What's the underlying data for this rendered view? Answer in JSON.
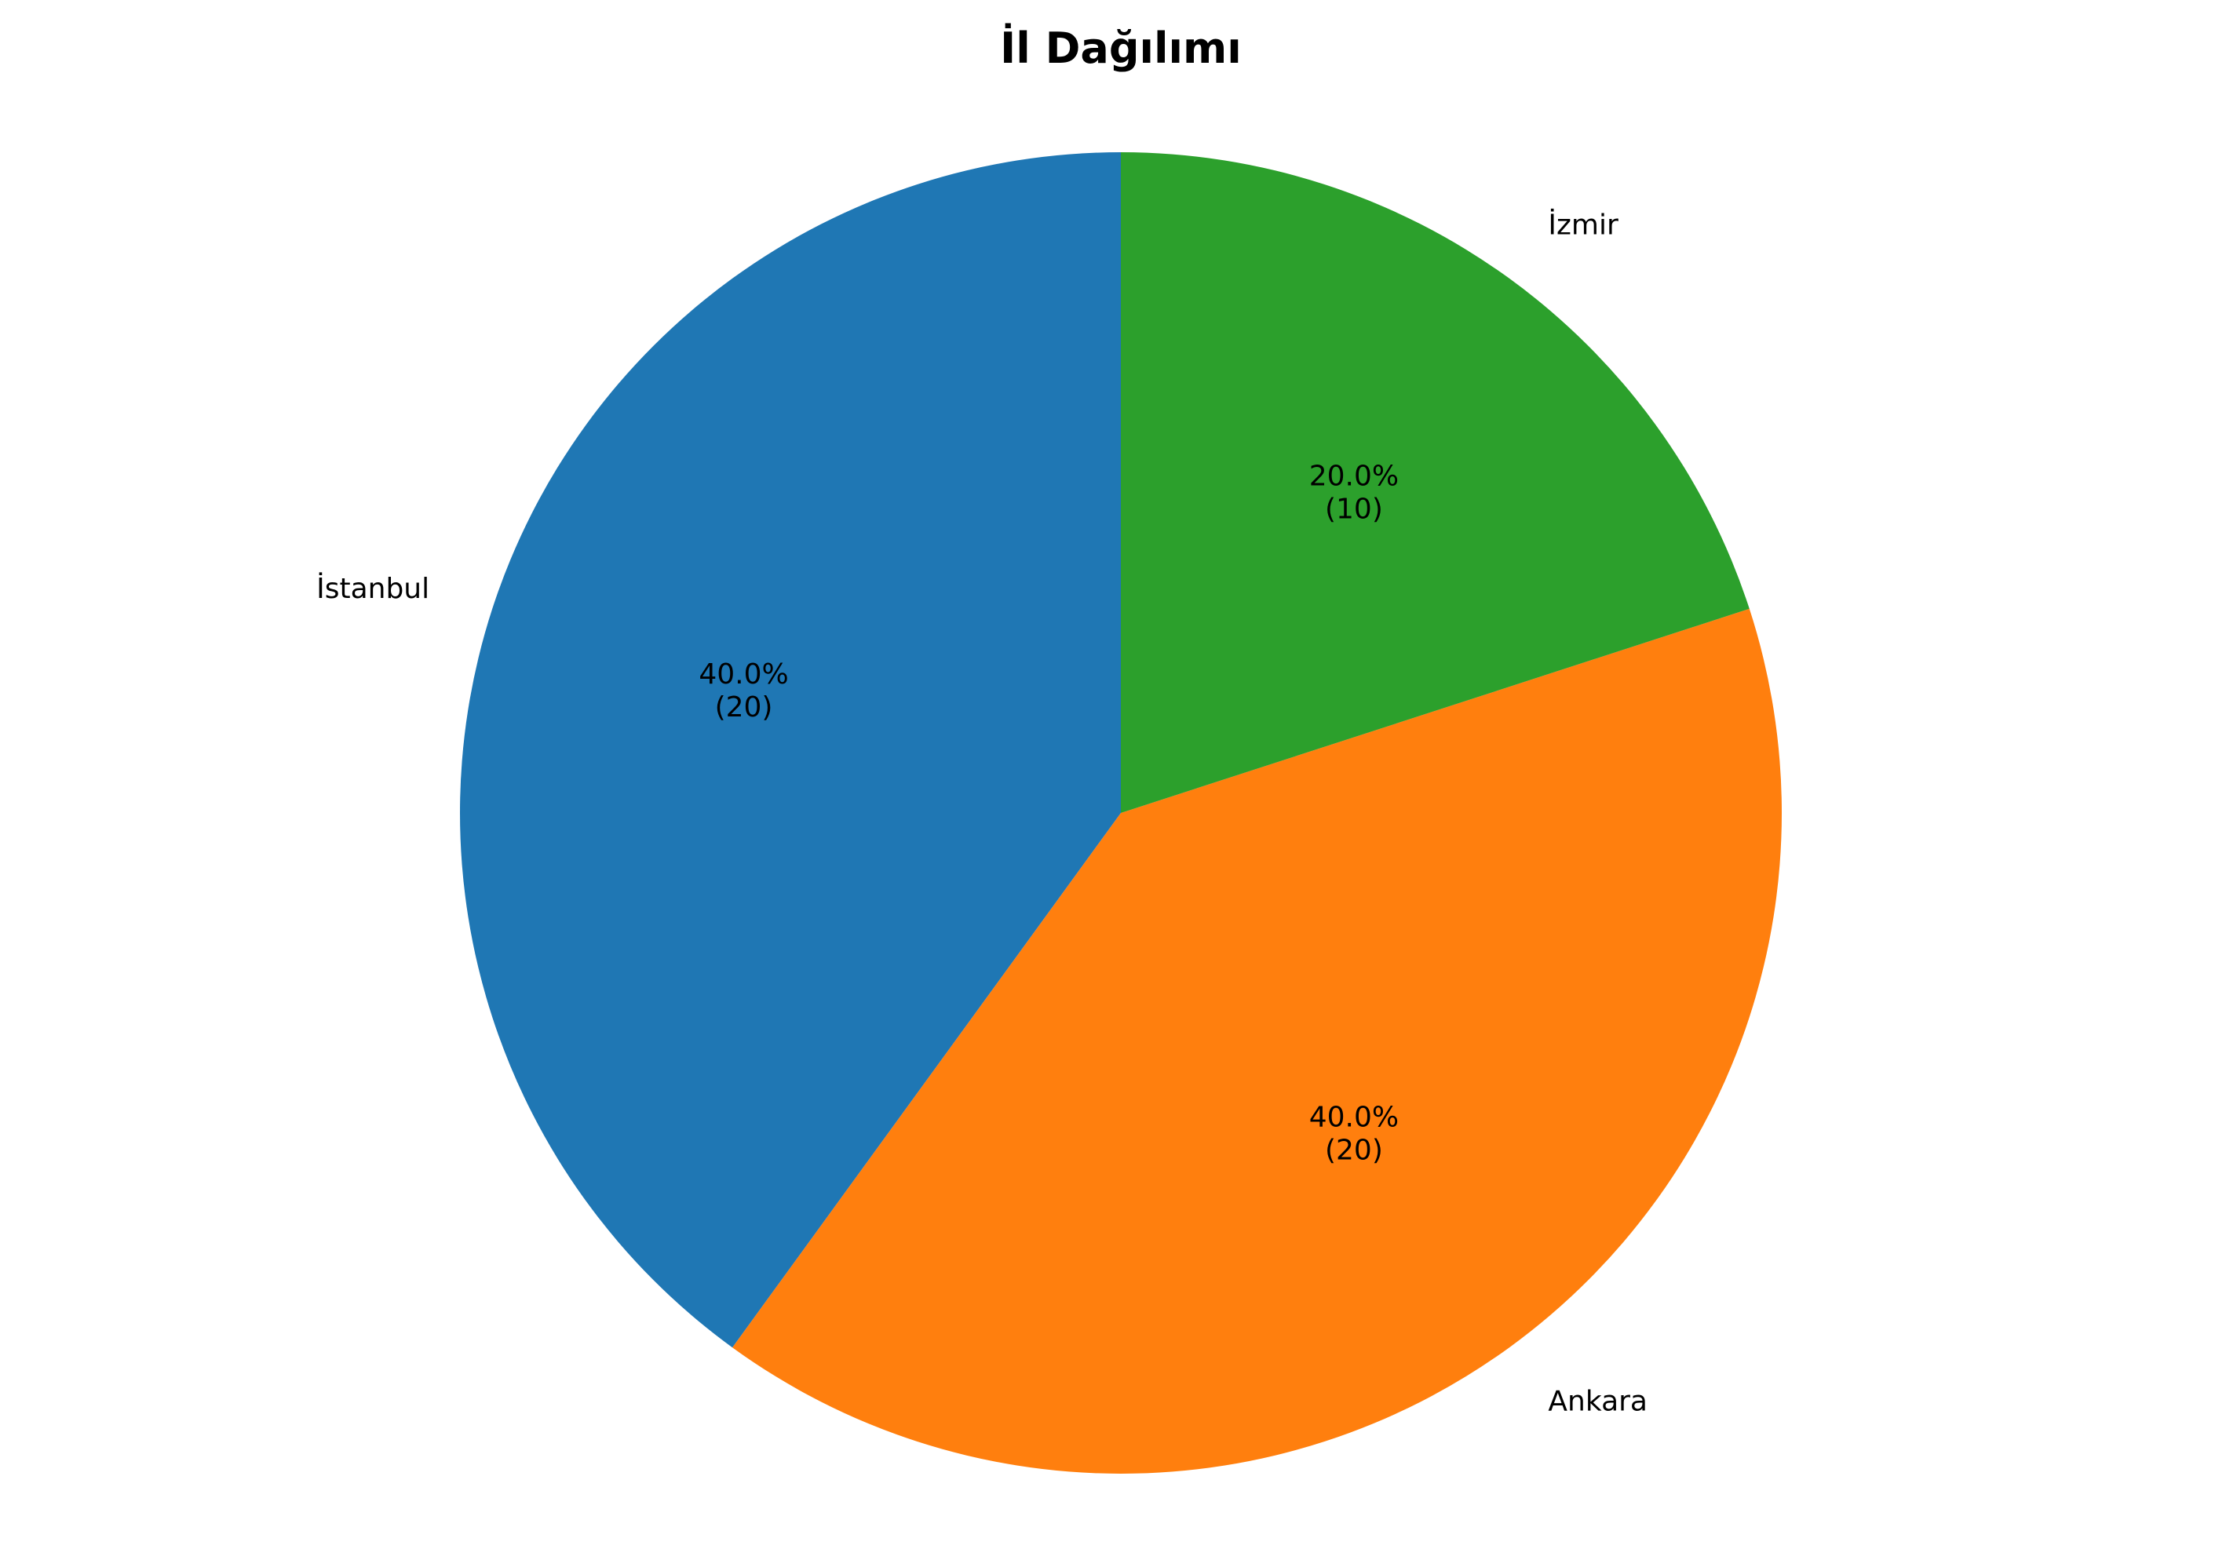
{
  "chart_data": {
    "type": "pie",
    "title": "İl Dağılımı",
    "categories": [
      "İstanbul",
      "Ankara",
      "İzmir"
    ],
    "values": [
      20,
      20,
      10
    ],
    "percent_labels": [
      "40.0%",
      "40.0%",
      "20.0%"
    ],
    "count_labels": [
      "(20)",
      "(20)",
      "(10)"
    ],
    "colors": [
      "#1f77b4",
      "#ff7f0e",
      "#2ca02c"
    ],
    "start_angle_deg": 90,
    "direction": "counterclockwise",
    "legend": "none"
  }
}
